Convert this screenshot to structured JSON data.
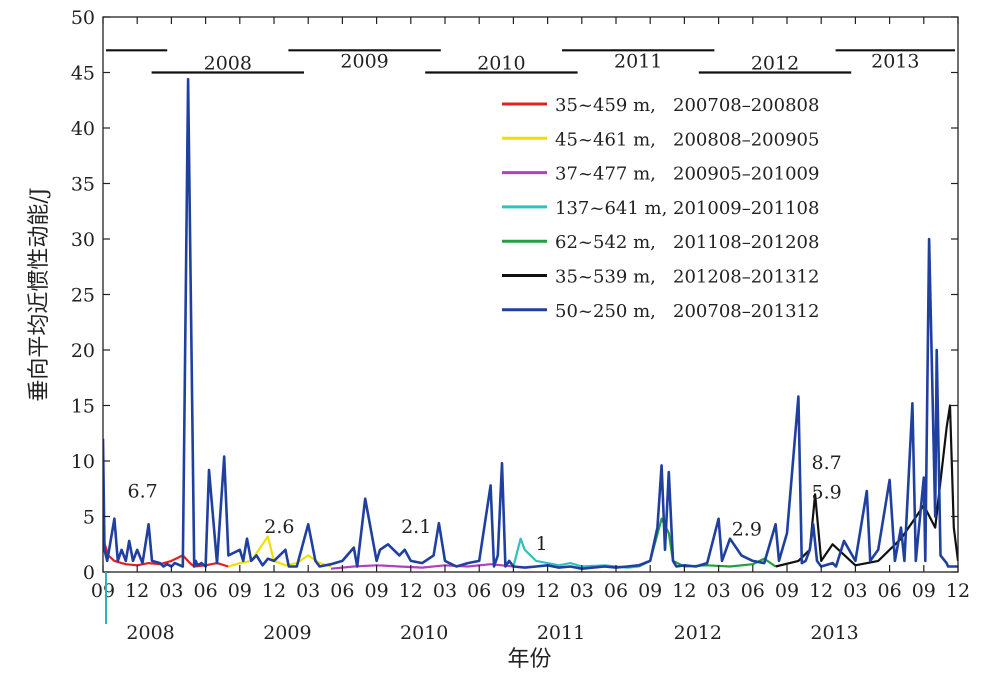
{
  "chart_data": {
    "type": "line",
    "xlabel": "年份",
    "ylabel": "垂向平均近惯性动能/J",
    "ylim": [
      0,
      50
    ],
    "yticks": [
      0,
      5,
      10,
      15,
      20,
      25,
      30,
      35,
      40,
      45,
      50
    ],
    "xlim": [
      "2007-09",
      "2013-12"
    ],
    "x_month_ticks": [
      {
        "date": "2007-09",
        "label": "09"
      },
      {
        "date": "2007-12",
        "label": "12"
      },
      {
        "date": "2008-03",
        "label": "03"
      },
      {
        "date": "2008-06",
        "label": "06"
      },
      {
        "date": "2008-09",
        "label": "09"
      },
      {
        "date": "2008-12",
        "label": "12"
      },
      {
        "date": "2009-03",
        "label": "03"
      },
      {
        "date": "2009-06",
        "label": "06"
      },
      {
        "date": "2009-09",
        "label": "09"
      },
      {
        "date": "2009-12",
        "label": "12"
      },
      {
        "date": "2010-03",
        "label": "03"
      },
      {
        "date": "2010-06",
        "label": "06"
      },
      {
        "date": "2010-09",
        "label": "09"
      },
      {
        "date": "2010-12",
        "label": "12"
      },
      {
        "date": "2011-03",
        "label": "03"
      },
      {
        "date": "2011-06",
        "label": "06"
      },
      {
        "date": "2011-09",
        "label": "09"
      },
      {
        "date": "2011-12",
        "label": "12"
      },
      {
        "date": "2012-03",
        "label": "03"
      },
      {
        "date": "2012-06",
        "label": "06"
      },
      {
        "date": "2012-09",
        "label": "09"
      },
      {
        "date": "2012-12",
        "label": "12"
      },
      {
        "date": "2013-03",
        "label": "03"
      },
      {
        "date": "2013-06",
        "label": "06"
      },
      {
        "date": "2013-09",
        "label": "09"
      },
      {
        "date": "2013-12",
        "label": "12"
      }
    ],
    "x_year_labels": [
      {
        "date": "2008-01",
        "label": "2008"
      },
      {
        "date": "2009-01",
        "label": "2009"
      },
      {
        "date": "2010-01",
        "label": "2010"
      },
      {
        "date": "2011-01",
        "label": "2011"
      },
      {
        "date": "2012-01",
        "label": "2012"
      },
      {
        "date": "2013-01",
        "label": "2013"
      }
    ],
    "year_bars": [
      {
        "label": "",
        "start": "2007-09",
        "end": "2007-12",
        "y": 47
      },
      {
        "label": "2008",
        "start": "2008-01",
        "end": "2008-12",
        "y": 45
      },
      {
        "label": "2009",
        "start": "2009-01",
        "end": "2009-12",
        "y": 47
      },
      {
        "label": "2010",
        "start": "2010-01",
        "end": "2010-12",
        "y": 45
      },
      {
        "label": "2011",
        "start": "2011-01",
        "end": "2011-12",
        "y": 47
      },
      {
        "label": "2012",
        "start": "2012-01",
        "end": "2012-12",
        "y": 45
      },
      {
        "label": "2013",
        "start": "2013-01",
        "end": "2013-12",
        "y": 47
      }
    ],
    "legend_placement": "upper-right",
    "annotations": [
      {
        "text": "6.7",
        "date": "2008-01",
        "y": 6.7
      },
      {
        "text": "2.6",
        "date": "2009-01",
        "y": 3.5
      },
      {
        "text": "2.1",
        "date": "2010-01",
        "y": 3.5
      },
      {
        "text": "1",
        "date": "2010-12",
        "y": 2.0
      },
      {
        "text": "2.9",
        "date": "2012-06",
        "y": 3.3
      },
      {
        "text": "8.7",
        "date": "2013-01",
        "y": 9.3
      },
      {
        "text": "5.9",
        "date": "2013-01",
        "y": 6.6
      }
    ],
    "series": [
      {
        "name": "35~459 m,   200708–200808",
        "color": "#e02020",
        "x": [
          "2007-09",
          "2007-09-15",
          "2007-10",
          "2007-10-20",
          "2007-11",
          "2007-12",
          "2008-01",
          "2008-02",
          "2008-03",
          "2008-04",
          "2008-04-20",
          "2008-05",
          "2008-06",
          "2008-07",
          "2008-08"
        ],
        "y": [
          3.0,
          1.5,
          1.0,
          0.8,
          0.7,
          0.6,
          0.8,
          0.7,
          1.0,
          1.5,
          0.8,
          0.5,
          0.6,
          0.8,
          0.5
        ]
      },
      {
        "name": "45~461 m,   200808–200905",
        "color": "#f0e000",
        "x": [
          "2008-08",
          "2008-09",
          "2008-10",
          "2008-11",
          "2008-11-15",
          "2008-12",
          "2009-01",
          "2009-02",
          "2009-03",
          "2009-04",
          "2009-05"
        ],
        "y": [
          0.5,
          0.8,
          1.0,
          2.5,
          3.2,
          1.0,
          0.6,
          0.8,
          1.5,
          0.8,
          0.5
        ]
      },
      {
        "name": "37~477 m,   200905–201009",
        "color": "#b040c0",
        "x": [
          "2009-05",
          "2009-07",
          "2009-09",
          "2009-11",
          "2010-01",
          "2010-03",
          "2010-05",
          "2010-07",
          "2010-09"
        ],
        "y": [
          0.3,
          0.5,
          0.6,
          0.5,
          0.4,
          0.6,
          0.5,
          0.7,
          0.5
        ]
      },
      {
        "name": "137~641 m, 201009–201108",
        "color": "#30c0c0",
        "x": [
          "2010-09",
          "2010-09-20",
          "2010-10",
          "2010-11",
          "2010-12",
          "2011-01",
          "2011-02",
          "2011-03",
          "2011-05",
          "2011-07",
          "2011-08"
        ],
        "y": [
          0.5,
          3.0,
          2.0,
          1.0,
          0.8,
          0.6,
          0.8,
          0.5,
          0.6,
          0.4,
          0.5
        ]
      },
      {
        "name": "62~542 m,   201108–201208",
        "color": "#20a040",
        "x": [
          "2011-08",
          "2011-09",
          "2011-10",
          "2011-10-20",
          "2011-11",
          "2011-12",
          "2012-02",
          "2012-04",
          "2012-06",
          "2012-07",
          "2012-08"
        ],
        "y": [
          0.5,
          1.0,
          4.8,
          3.5,
          1.0,
          0.5,
          0.6,
          0.5,
          0.7,
          1.2,
          0.5
        ]
      },
      {
        "name": "35~539 m,   201208–201312",
        "color": "#111111",
        "x": [
          "2012-08",
          "2012-10",
          "2012-11",
          "2012-11-15",
          "2012-12",
          "2013-01",
          "2013-03",
          "2013-05",
          "2013-07",
          "2013-09",
          "2013-10",
          "2013-11",
          "2013-11-10",
          "2013-11-20",
          "2013-12"
        ],
        "y": [
          0.5,
          1.0,
          2.0,
          7.0,
          1.0,
          2.5,
          0.6,
          1.0,
          3.0,
          6.0,
          4.0,
          13.0,
          15.0,
          4.0,
          1.0
        ]
      },
      {
        "name": "50~250 m,   200708–201312",
        "color": "#2040a0",
        "x": [
          "2007-09",
          "2007-09-05",
          "2007-09-12",
          "2007-10",
          "2007-10-10",
          "2007-10-20",
          "2007-11",
          "2007-11-10",
          "2007-11-20",
          "2007-12",
          "2007-12-15",
          "2008-01",
          "2008-01-10",
          "2008-02",
          "2008-02-10",
          "2008-02-20",
          "2008-03",
          "2008-03-10",
          "2008-04",
          "2008-04-15",
          "2008-05",
          "2008-05-05",
          "2008-05-10",
          "2008-05-20",
          "2008-06",
          "2008-06-10",
          "2008-07",
          "2008-07-20",
          "2008-08",
          "2008-09",
          "2008-09-10",
          "2008-09-20",
          "2008-10",
          "2008-10-15",
          "2008-11",
          "2008-11-15",
          "2008-12",
          "2009-01",
          "2009-01-10",
          "2009-02",
          "2009-03",
          "2009-03-20",
          "2009-04",
          "2009-05",
          "2009-06",
          "2009-07",
          "2009-07-10",
          "2009-08",
          "2009-09",
          "2009-09-10",
          "2009-10",
          "2009-11",
          "2009-11-15",
          "2009-12",
          "2010-01",
          "2010-02",
          "2010-02-15",
          "2010-03",
          "2010-04",
          "2010-05",
          "2010-06",
          "2010-07",
          "2010-07-10",
          "2010-07-20",
          "2010-08",
          "2010-08-10",
          "2010-08-20",
          "2010-09",
          "2010-10",
          "2010-11",
          "2010-12",
          "2011-01",
          "2011-02",
          "2011-03",
          "2011-04",
          "2011-05",
          "2011-06",
          "2011-07",
          "2011-08",
          "2011-09",
          "2011-09-20",
          "2011-10",
          "2011-10-10",
          "2011-10-20",
          "2011-11",
          "2011-11-10",
          "2011-12",
          "2012-01",
          "2012-02",
          "2012-03",
          "2012-03-10",
          "2012-04",
          "2012-05",
          "2012-06",
          "2012-07",
          "2012-08",
          "2012-08-10",
          "2012-09",
          "2012-10",
          "2012-10-10",
          "2012-10-20",
          "2012-11",
          "2012-11-10",
          "2012-11-20",
          "2012-12",
          "2013-01",
          "2013-01-10",
          "2013-02",
          "2013-03",
          "2013-04",
          "2013-04-10",
          "2013-05",
          "2013-06",
          "2013-06-15",
          "2013-07",
          "2013-07-10",
          "2013-08",
          "2013-08-10",
          "2013-09",
          "2013-09-05",
          "2013-09-15",
          "2013-10",
          "2013-10-05",
          "2013-10-15",
          "2013-11",
          "2013-11-05",
          "2013-11-12",
          "2013-11-20",
          "2013-12"
        ],
        "y": [
          12.0,
          2.0,
          1.0,
          4.8,
          1.0,
          2.0,
          1.0,
          2.8,
          1.0,
          2.0,
          0.8,
          4.3,
          1.0,
          0.8,
          0.5,
          0.7,
          0.5,
          0.8,
          0.5,
          44.4,
          0.5,
          1.0,
          0.6,
          0.8,
          0.5,
          9.2,
          0.8,
          10.4,
          1.5,
          2.0,
          1.0,
          3.0,
          1.0,
          1.5,
          0.6,
          1.2,
          1.0,
          2.0,
          0.5,
          0.5,
          4.3,
          1.0,
          0.5,
          0.7,
          1.0,
          2.2,
          0.5,
          6.6,
          1.0,
          2.0,
          2.5,
          1.5,
          2.0,
          1.0,
          0.8,
          1.5,
          4.4,
          1.0,
          0.5,
          0.8,
          1.0,
          7.8,
          0.5,
          1.5,
          9.8,
          0.5,
          1.0,
          0.5,
          0.4,
          0.5,
          0.6,
          0.4,
          0.5,
          0.3,
          0.4,
          0.5,
          0.4,
          0.5,
          0.6,
          1.0,
          4.0,
          9.6,
          2.0,
          9.0,
          1.0,
          0.5,
          0.6,
          0.5,
          0.8,
          4.8,
          1.0,
          3.0,
          1.5,
          1.0,
          0.8,
          4.3,
          1.0,
          3.5,
          15.8,
          0.8,
          1.0,
          2.0,
          4.3,
          1.0,
          0.5,
          0.8,
          0.5,
          2.8,
          1.0,
          7.3,
          1.0,
          2.0,
          8.3,
          1.0,
          4.0,
          1.0,
          15.2,
          1.0,
          8.5,
          1.0,
          30.0,
          5.0,
          20.0,
          1.5,
          0.8,
          0.5,
          0.5,
          0.5,
          0.5
        ]
      }
    ]
  }
}
